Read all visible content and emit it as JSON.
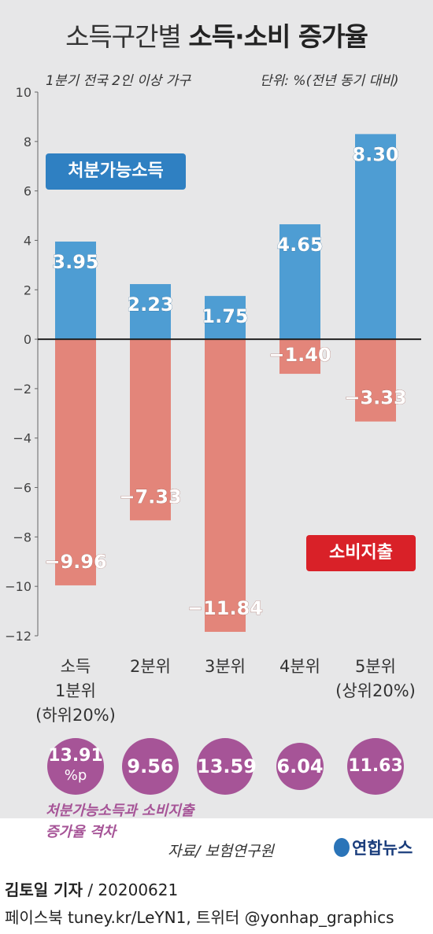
{
  "title": {
    "normal": "소득구간별",
    "bold": "소득·소비 증가율"
  },
  "subtitle_left": "1분기 전국 2인 이상 가구",
  "unit": "단위: %(전년 동기 대비)",
  "chart_data": {
    "type": "bar",
    "categories": [
      "소득\n1분위\n(하위20%)",
      "2분위",
      "3분위",
      "4분위",
      "5분위\n(상위20%)"
    ],
    "series": [
      {
        "name": "처분가능소득",
        "values": [
          3.95,
          2.23,
          1.75,
          4.65,
          8.3
        ],
        "labels": [
          "3.95",
          "2.23",
          "1.75",
          "4.65",
          "8.30"
        ],
        "color": "#4e9dd3"
      },
      {
        "name": "소비지출",
        "values": [
          -9.96,
          -7.33,
          -11.84,
          -1.4,
          -3.33
        ],
        "labels": [
          "−9.96",
          "−7.33",
          "−11.84",
          "−1.40",
          "−3.33"
        ],
        "color": "#e3857a"
      }
    ],
    "ylim": [
      -12,
      10
    ],
    "yticks": [
      10,
      8,
      6,
      4,
      2,
      0,
      -2,
      -4,
      -6,
      -8,
      -10,
      -12
    ],
    "yticklabels": [
      "10",
      "8",
      "6",
      "4",
      "2",
      "0",
      "−2",
      "−4",
      "−6",
      "−8",
      "−10",
      "−12"
    ]
  },
  "legend": {
    "income": "처분가능소득",
    "spend": "소비지출"
  },
  "gaps": {
    "values": [
      13.91,
      9.56,
      13.59,
      6.04,
      11.63
    ],
    "labels": [
      "13.91",
      "9.56",
      "13.59",
      "6.04",
      "11.63"
    ],
    "first_unit": "%p",
    "caption_line1": "처분가능소득과 소비지출",
    "caption_line2": "증가율 격차"
  },
  "source": "자료/ 보험연구원",
  "logo": "연합뉴스",
  "reporter": {
    "name": "김토일 기자",
    "date": " / 20200621"
  },
  "social": "페이스북 tuney.kr/LeYN1, 트위터 @yonhap_graphics",
  "colors": {
    "income": "#4e9dd3",
    "spend": "#e3857a",
    "gap": "#a65497",
    "legend_income": "#2f80c2",
    "legend_spend": "#d92128"
  }
}
